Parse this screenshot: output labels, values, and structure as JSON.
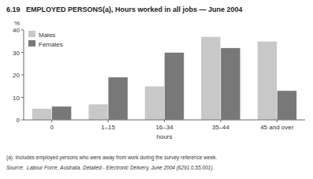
{
  "chart_data": {
    "type": "bar",
    "title": "6.19   EMPLOYED PERSONS(a), Hours worked in all jobs — June 2004",
    "categories": [
      "0",
      "1–15",
      "16–34",
      "35–44",
      "45 and over"
    ],
    "xlabel": "hours",
    "ylabel": "%",
    "series": [
      {
        "name": "Males",
        "color": "#c8c8c8",
        "values": [
          5,
          7,
          15,
          37,
          35
        ]
      },
      {
        "name": "Females",
        "color": "#787878",
        "values": [
          6,
          19,
          30,
          32,
          13
        ]
      }
    ],
    "ylim": [
      0,
      40
    ],
    "yticks": [
      0,
      10,
      20,
      30,
      40
    ],
    "grid": false,
    "legend": "upper left",
    "footnote": "(a)  Includes employed persons who were away from work during the survey reference week.",
    "source": "Source:  Labour Force, Australia, Detailed - Electronic Delivery, June 2004 (6291.0.55.001)."
  }
}
